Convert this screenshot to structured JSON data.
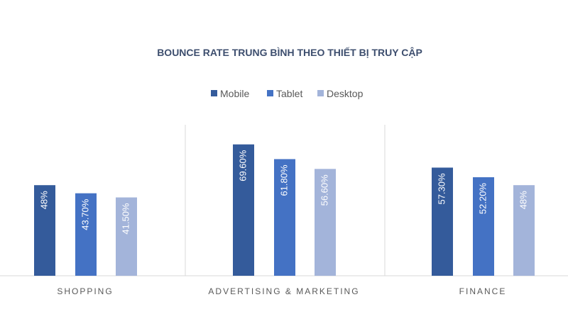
{
  "chart_data": {
    "type": "bar",
    "title": "BOUNCE RATE TRUNG BÌNH THEO THIẾT BỊ TRUY CẬP",
    "categories": [
      "SHOPPING",
      "ADVERTISING & MARKETING",
      "FINANCE"
    ],
    "series": [
      {
        "name": "Mobile",
        "color": "#345B9B",
        "values": [
          48,
          69.6,
          57.3
        ],
        "labels": [
          "48%",
          "69.60%",
          "57.30%"
        ]
      },
      {
        "name": "Tablet",
        "color": "#4472C4",
        "values": [
          43.7,
          61.8,
          52.2
        ],
        "labels": [
          "43.70%",
          "61.80%",
          "52.20%"
        ]
      },
      {
        "name": "Desktop",
        "color": "#A3B4DA",
        "values": [
          41.5,
          56.6,
          48
        ],
        "labels": [
          "41.50%",
          "56.60%",
          "48%"
        ]
      }
    ],
    "ylim": [
      0,
      80
    ],
    "legend": "top",
    "grid": false,
    "data_labels": "inside-rotated"
  }
}
